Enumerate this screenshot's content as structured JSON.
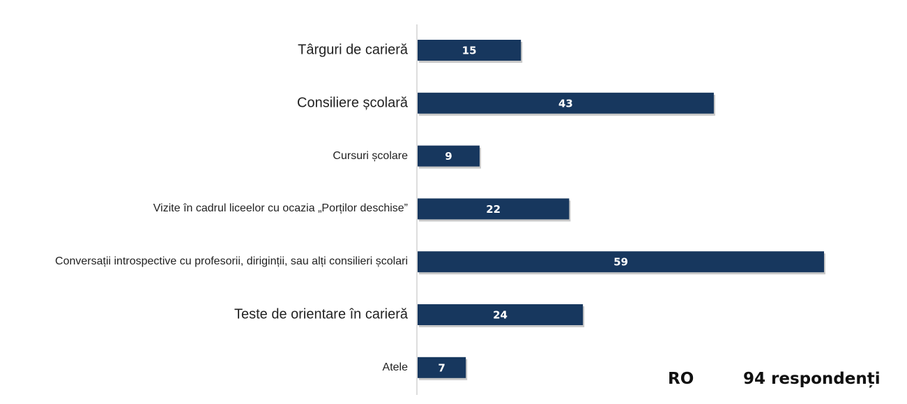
{
  "chart_data": {
    "type": "bar",
    "orientation": "horizontal",
    "categories": [
      "Târguri de carieră",
      "Consiliere școlară",
      "Cursuri școlare",
      "Vizite în cadrul liceelor cu ocazia „Porților deschise”",
      "Conversații introspective cu profesorii, diriginții, sau alți consilieri școlari",
      "Teste de orientare în carieră",
      "Atele"
    ],
    "values": [
      15,
      43,
      9,
      22,
      59,
      24,
      7
    ],
    "color": "#17375e",
    "annotations": [
      "RO",
      "94 respondenți"
    ]
  }
}
